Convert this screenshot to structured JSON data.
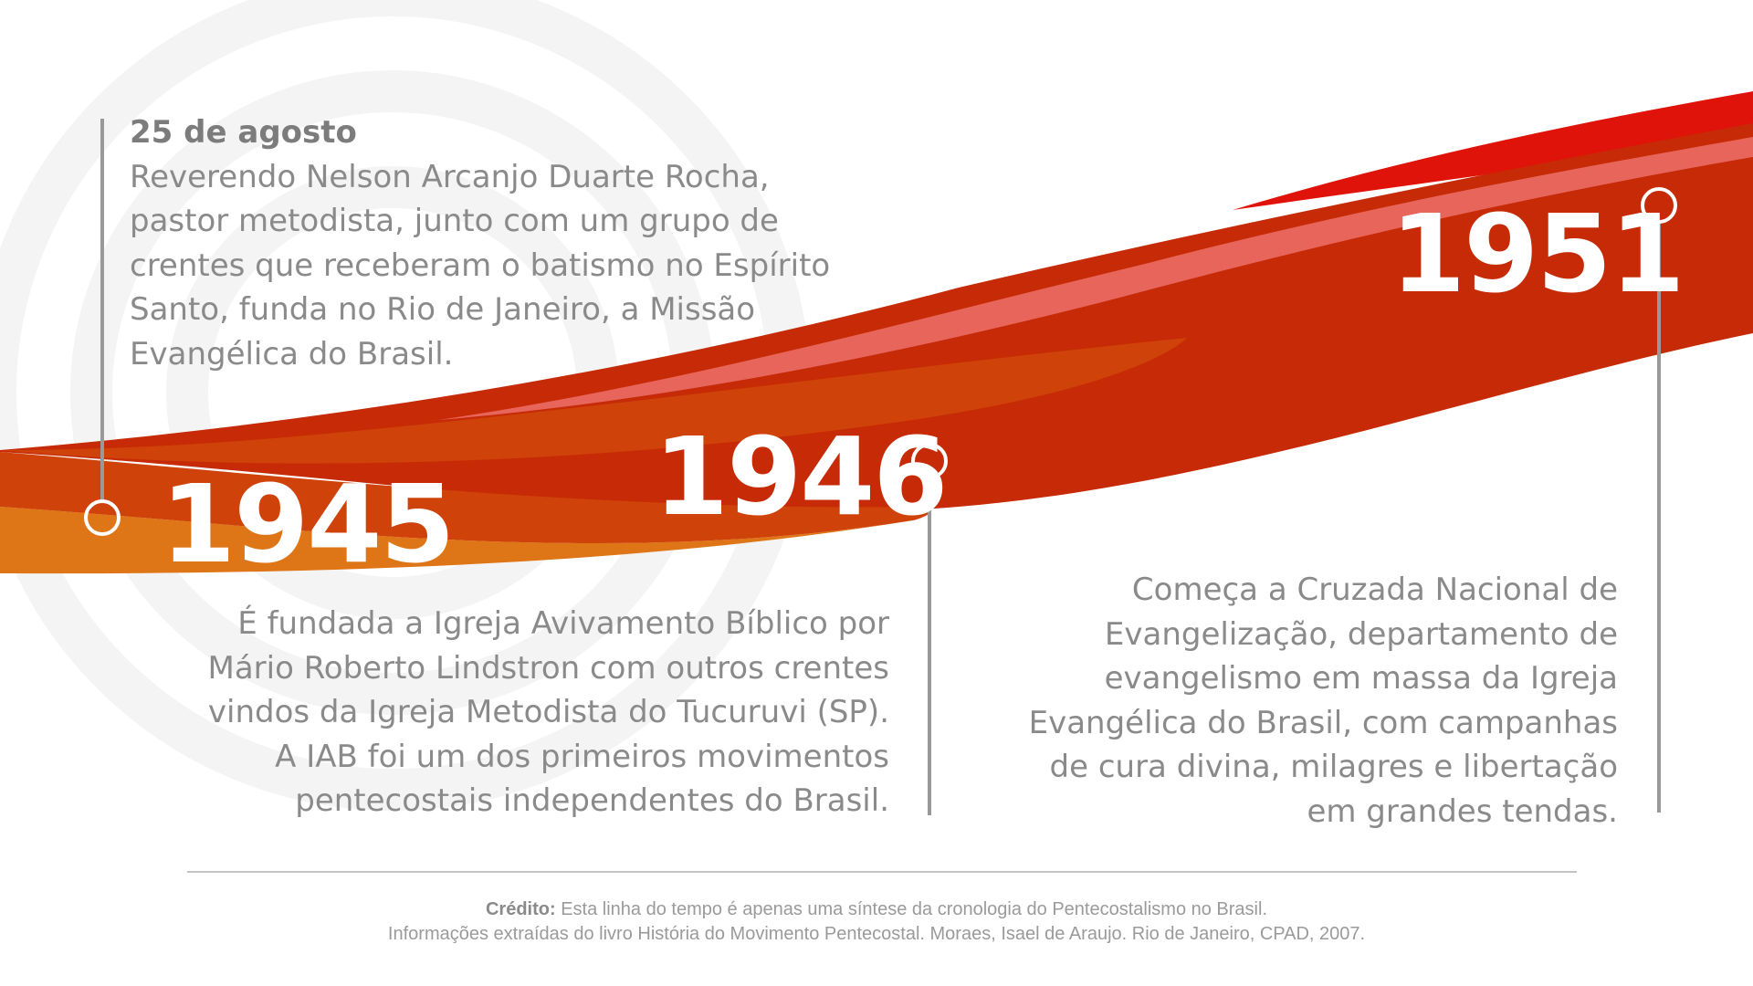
{
  "events": [
    {
      "year": "1945",
      "date": "25 de agosto",
      "text_lines": [
        "Reverendo Nelson Arcanjo Duarte Rocha,",
        "pastor metodista, junto com um grupo de",
        "crentes que receberam o batismo no Espírito",
        "Santo, funda no Rio de Janeiro, a Missão",
        "Evangélica do Brasil."
      ],
      "sub_lines": [
        "É fundada a Igreja Avivamento Bíblico por",
        "Mário Roberto Lindstron com outros crentes",
        "vindos da Igreja Metodista do Tucuruvi (SP).",
        "A IAB foi um dos primeiros movimentos",
        "pentecostais independentes do Brasil."
      ]
    },
    {
      "year": "1946"
    },
    {
      "year": "1951",
      "text_lines": [
        "Começa a Cruzada Nacional de",
        "Evangelização, departamento de",
        "evangelismo em massa da Igreja",
        "Evangélica do Brasil, com campanhas",
        "de cura divina, milagres e libertação",
        "em grandes tendas."
      ]
    }
  ],
  "footer": {
    "credit_label": "Crédito:",
    "credit_text": "Esta linha do tempo é apenas uma síntese da cronologia do Pentecostalismo no Brasil.",
    "source_text": "Informações extraídas do livro História do Movimento Pentecostal. Moraes, Isael de Araujo. Rio de Janeiro, CPAD, 2007."
  },
  "colors": {
    "ribbon_orange": "#de7516",
    "ribbon_dark_orange": "#cf4209",
    "ribbon_red": "#c62a06",
    "ribbon_light_red": "#e7655a",
    "ribbon_bright_red": "#e0130a",
    "marker_gray": "#999999",
    "text_gray": "#8a8a8a"
  }
}
